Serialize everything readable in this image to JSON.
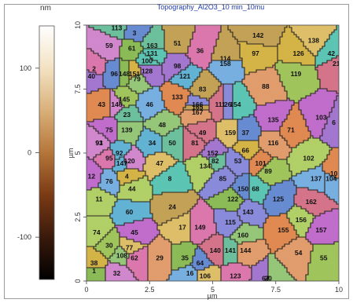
{
  "chart_data": {
    "type": "heatmap",
    "title": "Topography_Al2O3_10 min_10mu",
    "xlabel": "µm",
    "ylabel": "µm",
    "colorbar_label": "nm",
    "xlim": [
      0,
      10
    ],
    "ylim": [
      0,
      10
    ],
    "x_ticks": [
      "0",
      "2.5",
      "5",
      "7.5",
      "10"
    ],
    "y_ticks": [
      "0",
      "2.5",
      "5",
      "7.5",
      "10"
    ],
    "colorbar_range": [
      -150,
      150
    ],
    "colorbar_ticks": [
      "100",
      "0",
      "-100"
    ],
    "colorbar_stops": [
      "#000000",
      "#3a1a0c",
      "#7a3a14",
      "#b5763a",
      "#d9b07a",
      "#f2e2c2",
      "#ffffff"
    ],
    "grains": [
      {
        "label": "1",
        "x": 0.3,
        "y": 0.4
      },
      {
        "label": "2",
        "x": 0.3,
        "y": 8.3
      },
      {
        "label": "3",
        "x": 1.9,
        "y": 9.7
      },
      {
        "label": "4",
        "x": 1.6,
        "y": 4.1
      },
      {
        "label": "6",
        "x": 9.8,
        "y": 6.2
      },
      {
        "label": "8",
        "x": 3.3,
        "y": 4.0
      },
      {
        "label": "10",
        "x": 9.8,
        "y": 4.2
      },
      {
        "label": "11",
        "x": 0.5,
        "y": 3.2
      },
      {
        "label": "12",
        "x": 0.2,
        "y": 4.1
      },
      {
        "label": "16",
        "x": 4.1,
        "y": 0.3
      },
      {
        "label": "17",
        "x": 3.8,
        "y": 2.1
      },
      {
        "label": "20",
        "x": 7.2,
        "y": 0.1
      },
      {
        "label": "21",
        "x": 9.9,
        "y": 8.5
      },
      {
        "label": "23",
        "x": 1.6,
        "y": 6.5
      },
      {
        "label": "24",
        "x": 3.4,
        "y": 2.9
      },
      {
        "label": "26",
        "x": 5.6,
        "y": 6.9
      },
      {
        "label": "29",
        "x": 2.9,
        "y": 0.9
      },
      {
        "label": "30",
        "x": 0.9,
        "y": 1.4
      },
      {
        "label": "32",
        "x": 1.2,
        "y": 0.3
      },
      {
        "label": "34",
        "x": 2.6,
        "y": 5.4
      },
      {
        "label": "35",
        "x": 3.9,
        "y": 0.9
      },
      {
        "label": "36",
        "x": 4.5,
        "y": 9.0
      },
      {
        "label": "37",
        "x": 6.3,
        "y": 5.8
      },
      {
        "label": "38",
        "x": 0.3,
        "y": 0.7
      },
      {
        "label": "40",
        "x": 0.2,
        "y": 8.0
      },
      {
        "label": "42",
        "x": 9.7,
        "y": 8.9
      },
      {
        "label": "43",
        "x": 0.6,
        "y": 6.9
      },
      {
        "label": "44",
        "x": 1.8,
        "y": 3.6
      },
      {
        "label": "45",
        "x": 1.9,
        "y": 1.9
      },
      {
        "label": "46",
        "x": 2.5,
        "y": 6.9
      },
      {
        "label": "47",
        "x": 2.9,
        "y": 4.6
      },
      {
        "label": "48",
        "x": 3.0,
        "y": 6.1
      },
      {
        "label": "49",
        "x": 4.6,
        "y": 5.8
      },
      {
        "label": "50",
        "x": 3.4,
        "y": 5.4
      },
      {
        "label": "51",
        "x": 3.6,
        "y": 9.3
      },
      {
        "label": "53",
        "x": 6.0,
        "y": 4.7
      },
      {
        "label": "54",
        "x": 8.4,
        "y": 1.1
      },
      {
        "label": "55",
        "x": 9.4,
        "y": 0.9
      },
      {
        "label": "59",
        "x": 0.9,
        "y": 9.2
      },
      {
        "label": "60",
        "x": 1.7,
        "y": 2.7
      },
      {
        "label": "61",
        "x": 1.8,
        "y": 9.1
      },
      {
        "label": "62",
        "x": 1.9,
        "y": 0.9
      },
      {
        "label": "64",
        "x": 4.5,
        "y": 0.7
      },
      {
        "label": "66",
        "x": 6.3,
        "y": 5.1
      },
      {
        "label": "67",
        "x": 7.1,
        "y": 0.1
      },
      {
        "label": "68",
        "x": 6.7,
        "y": 3.6
      },
      {
        "label": "71",
        "x": 8.1,
        "y": 5.9
      },
      {
        "label": "74",
        "x": 0.4,
        "y": 1.9
      },
      {
        "label": "75",
        "x": 0.9,
        "y": 5.9
      },
      {
        "label": "76",
        "x": 0.9,
        "y": 3.9
      },
      {
        "label": "77",
        "x": 1.7,
        "y": 1.3
      },
      {
        "label": "79",
        "x": 2.0,
        "y": 7.9
      },
      {
        "label": "81",
        "x": 4.3,
        "y": 5.4
      },
      {
        "label": "82",
        "x": 5.1,
        "y": 4.7
      },
      {
        "label": "83",
        "x": 4.6,
        "y": 7.5
      },
      {
        "label": "85",
        "x": 5.4,
        "y": 4.0
      },
      {
        "label": "88",
        "x": 7.1,
        "y": 7.6
      },
      {
        "label": "89",
        "x": 7.2,
        "y": 4.3
      },
      {
        "label": "91",
        "x": 0.5,
        "y": 5.4
      },
      {
        "label": "92",
        "x": 1.3,
        "y": 5.0
      },
      {
        "label": "93",
        "x": 0.5,
        "y": 5.4
      },
      {
        "label": "95",
        "x": 0.9,
        "y": 4.8
      },
      {
        "label": "96",
        "x": 1.1,
        "y": 8.1
      },
      {
        "label": "97",
        "x": 6.7,
        "y": 8.9
      },
      {
        "label": "98",
        "x": 3.6,
        "y": 8.4
      },
      {
        "label": "100",
        "x": 2.4,
        "y": 8.6
      },
      {
        "label": "101",
        "x": 6.9,
        "y": 4.6
      },
      {
        "label": "102",
        "x": 8.8,
        "y": 4.8
      },
      {
        "label": "103",
        "x": 9.3,
        "y": 6.4
      },
      {
        "label": "104",
        "x": 9.7,
        "y": 4.0
      },
      {
        "label": "106",
        "x": 4.7,
        "y": 0.2
      },
      {
        "label": "108",
        "x": 1.4,
        "y": 1.0
      },
      {
        "label": "111",
        "x": 5.3,
        "y": 6.9
      },
      {
        "label": "113",
        "x": 1.2,
        "y": 9.9
      },
      {
        "label": "114",
        "x": 5.5,
        "y": 8.7
      },
      {
        "label": "115",
        "x": 5.7,
        "y": 2.3
      },
      {
        "label": "116",
        "x": 7.4,
        "y": 5.4
      },
      {
        "label": "119",
        "x": 8.3,
        "y": 8.1
      },
      {
        "label": "120",
        "x": 1.7,
        "y": 4.7
      },
      {
        "label": "121",
        "x": 3.9,
        "y": 8.0
      },
      {
        "label": "122",
        "x": 5.8,
        "y": 3.2
      },
      {
        "label": "123",
        "x": 5.9,
        "y": 0.2
      },
      {
        "label": "125",
        "x": 7.6,
        "y": 3.2
      },
      {
        "label": "126",
        "x": 8.4,
        "y": 8.9
      },
      {
        "label": "128",
        "x": 2.4,
        "y": 8.2
      },
      {
        "label": "131",
        "x": 2.6,
        "y": 8.9
      },
      {
        "label": "133",
        "x": 3.6,
        "y": 7.2
      },
      {
        "label": "134",
        "x": 4.7,
        "y": 4.5
      },
      {
        "label": "135",
        "x": 7.4,
        "y": 6.3
      },
      {
        "label": "137",
        "x": 9.1,
        "y": 4.0
      },
      {
        "label": "138",
        "x": 9.0,
        "y": 9.4
      },
      {
        "label": "139",
        "x": 1.6,
        "y": 5.9
      },
      {
        "label": "140",
        "x": 5.1,
        "y": 1.2
      },
      {
        "label": "141",
        "x": 5.7,
        "y": 1.2
      },
      {
        "label": "142",
        "x": 6.8,
        "y": 9.6
      },
      {
        "label": "143",
        "x": 6.4,
        "y": 2.7
      },
      {
        "label": "144",
        "x": 6.3,
        "y": 1.2
      },
      {
        "label": "145",
        "x": 1.5,
        "y": 7.1
      },
      {
        "label": "146",
        "x": 1.2,
        "y": 6.9
      },
      {
        "label": "147",
        "x": 1.4,
        "y": 4.6
      },
      {
        "label": "148",
        "x": 1.5,
        "y": 8.1
      },
      {
        "label": "149",
        "x": 4.5,
        "y": 2.1
      },
      {
        "label": "150",
        "x": 6.2,
        "y": 3.6
      },
      {
        "label": "151",
        "x": 1.9,
        "y": 8.1
      },
      {
        "label": "152",
        "x": 5.0,
        "y": 5.0
      },
      {
        "label": "154",
        "x": 5.9,
        "y": 6.9
      },
      {
        "label": "155",
        "x": 7.8,
        "y": 2.0
      },
      {
        "label": "156",
        "x": 8.5,
        "y": 2.4
      },
      {
        "label": "157",
        "x": 9.3,
        "y": 2.0
      },
      {
        "label": "158",
        "x": 5.5,
        "y": 8.5
      },
      {
        "label": "159",
        "x": 5.7,
        "y": 5.8
      },
      {
        "label": "160",
        "x": 6.2,
        "y": 1.8
      },
      {
        "label": "162",
        "x": 8.9,
        "y": 3.1
      },
      {
        "label": "163",
        "x": 2.6,
        "y": 9.2
      },
      {
        "label": "165",
        "x": 4.4,
        "y": 6.8
      },
      {
        "label": "166",
        "x": 4.4,
        "y": 6.9
      },
      {
        "label": "167",
        "x": 4.4,
        "y": 6.6
      }
    ]
  }
}
